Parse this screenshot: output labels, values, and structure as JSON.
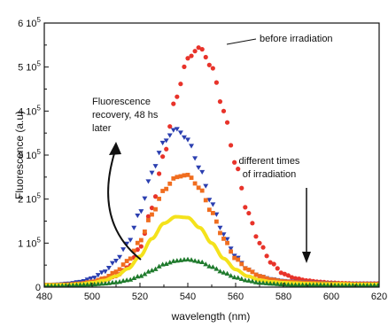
{
  "chart_data": {
    "type": "scatter",
    "xlabel": "wavelength (nm)",
    "ylabel": "Fluorescence (a.u)",
    "xlim": [
      480,
      620
    ],
    "ylim": [
      0,
      600000
    ],
    "x_ticks": [
      "480",
      "500",
      "520",
      "540",
      "560",
      "580",
      "600",
      "620"
    ],
    "y_ticks": [
      {
        "value": 0,
        "base": "0",
        "exp": ""
      },
      {
        "value": 100000,
        "base": "1 10",
        "exp": "5"
      },
      {
        "value": 200000,
        "base": "2 10",
        "exp": "5"
      },
      {
        "value": 300000,
        "base": "3 10",
        "exp": "5"
      },
      {
        "value": 400000,
        "base": "4 10",
        "exp": "5"
      },
      {
        "value": 500000,
        "base": "5 10",
        "exp": "5"
      },
      {
        "value": 600000,
        "base": "6 10",
        "exp": "5"
      }
    ],
    "grid": false,
    "annotations": {
      "before": "before irradiation",
      "recovery": [
        "Fluorescence",
        "recovery, 48 hs",
        "later"
      ],
      "times": [
        "different times",
        "of irradiation"
      ]
    },
    "series": [
      {
        "color": "#e8332a",
        "marker": "circle",
        "x": [
          480,
          485,
          490,
          495,
          500,
          505,
          510,
          515,
          520,
          525,
          530,
          535,
          540,
          545,
          550,
          555,
          560,
          565,
          570,
          575,
          580,
          585,
          590,
          595,
          600,
          605,
          610,
          615,
          620
        ],
        "y": [
          5000,
          5000,
          6000,
          8000,
          10000,
          15000,
          25000,
          45000,
          90000,
          180000,
          300000,
          430000,
          520000,
          545000,
          500000,
          400000,
          280000,
          170000,
          100000,
          55000,
          30000,
          20000,
          15000,
          12000,
          10000,
          9000,
          8000,
          8000,
          8000
        ]
      },
      {
        "color": "#2b3fb0",
        "marker": "triangle-down",
        "x": [
          480,
          485,
          490,
          495,
          500,
          505,
          510,
          515,
          520,
          525,
          530,
          535,
          540,
          545,
          550,
          555,
          560,
          565,
          570,
          575,
          580,
          585,
          590,
          595,
          600,
          605,
          610,
          615,
          620
        ],
        "y": [
          5000,
          6000,
          8000,
          12000,
          20000,
          35000,
          60000,
          100000,
          170000,
          260000,
          330000,
          360000,
          335000,
          270000,
          190000,
          120000,
          70000,
          40000,
          25000,
          18000,
          14000,
          12000,
          11000,
          10000,
          9000,
          8000,
          8000,
          8000,
          8000
        ]
      },
      {
        "color": "#f06d1f",
        "marker": "square",
        "x": [
          480,
          485,
          490,
          495,
          500,
          505,
          510,
          515,
          520,
          525,
          530,
          535,
          540,
          545,
          550,
          555,
          560,
          565,
          570,
          575,
          580,
          585,
          590,
          595,
          600,
          605,
          610,
          615,
          620
        ],
        "y": [
          5000,
          5000,
          6000,
          8000,
          12000,
          20000,
          35000,
          60000,
          105000,
          165000,
          220000,
          250000,
          255000,
          225000,
          170000,
          110000,
          65000,
          40000,
          25000,
          17000,
          13000,
          11000,
          10000,
          9000,
          8000,
          8000,
          7000,
          7000,
          7000
        ]
      },
      {
        "color": "#f4e21c",
        "marker": "line",
        "x": [
          480,
          485,
          490,
          495,
          500,
          505,
          510,
          515,
          520,
          525,
          530,
          535,
          540,
          545,
          550,
          555,
          560,
          565,
          570,
          575,
          580,
          585,
          590,
          595,
          600,
          605,
          610,
          615,
          620
        ],
        "y": [
          5000,
          5000,
          5000,
          7000,
          10000,
          15000,
          25000,
          42000,
          70000,
          110000,
          145000,
          160000,
          158000,
          135000,
          100000,
          65000,
          40000,
          25000,
          16000,
          12000,
          10000,
          9000,
          8000,
          7000,
          7000,
          7000,
          6000,
          6000,
          6000
        ]
      },
      {
        "color": "#1e7a2c",
        "marker": "triangle-up",
        "x": [
          480,
          485,
          490,
          495,
          500,
          505,
          510,
          515,
          520,
          525,
          530,
          535,
          540,
          545,
          550,
          555,
          560,
          565,
          570,
          575,
          580,
          585,
          590,
          595,
          600,
          605,
          610,
          615,
          620
        ],
        "y": [
          3000,
          3000,
          4000,
          5000,
          6000,
          8000,
          11000,
          16000,
          25000,
          38000,
          52000,
          60000,
          63000,
          58000,
          46000,
          33000,
          22000,
          15000,
          10000,
          8000,
          6000,
          5000,
          5000,
          5000,
          4000,
          4000,
          4000,
          4000,
          4000
        ]
      }
    ]
  }
}
